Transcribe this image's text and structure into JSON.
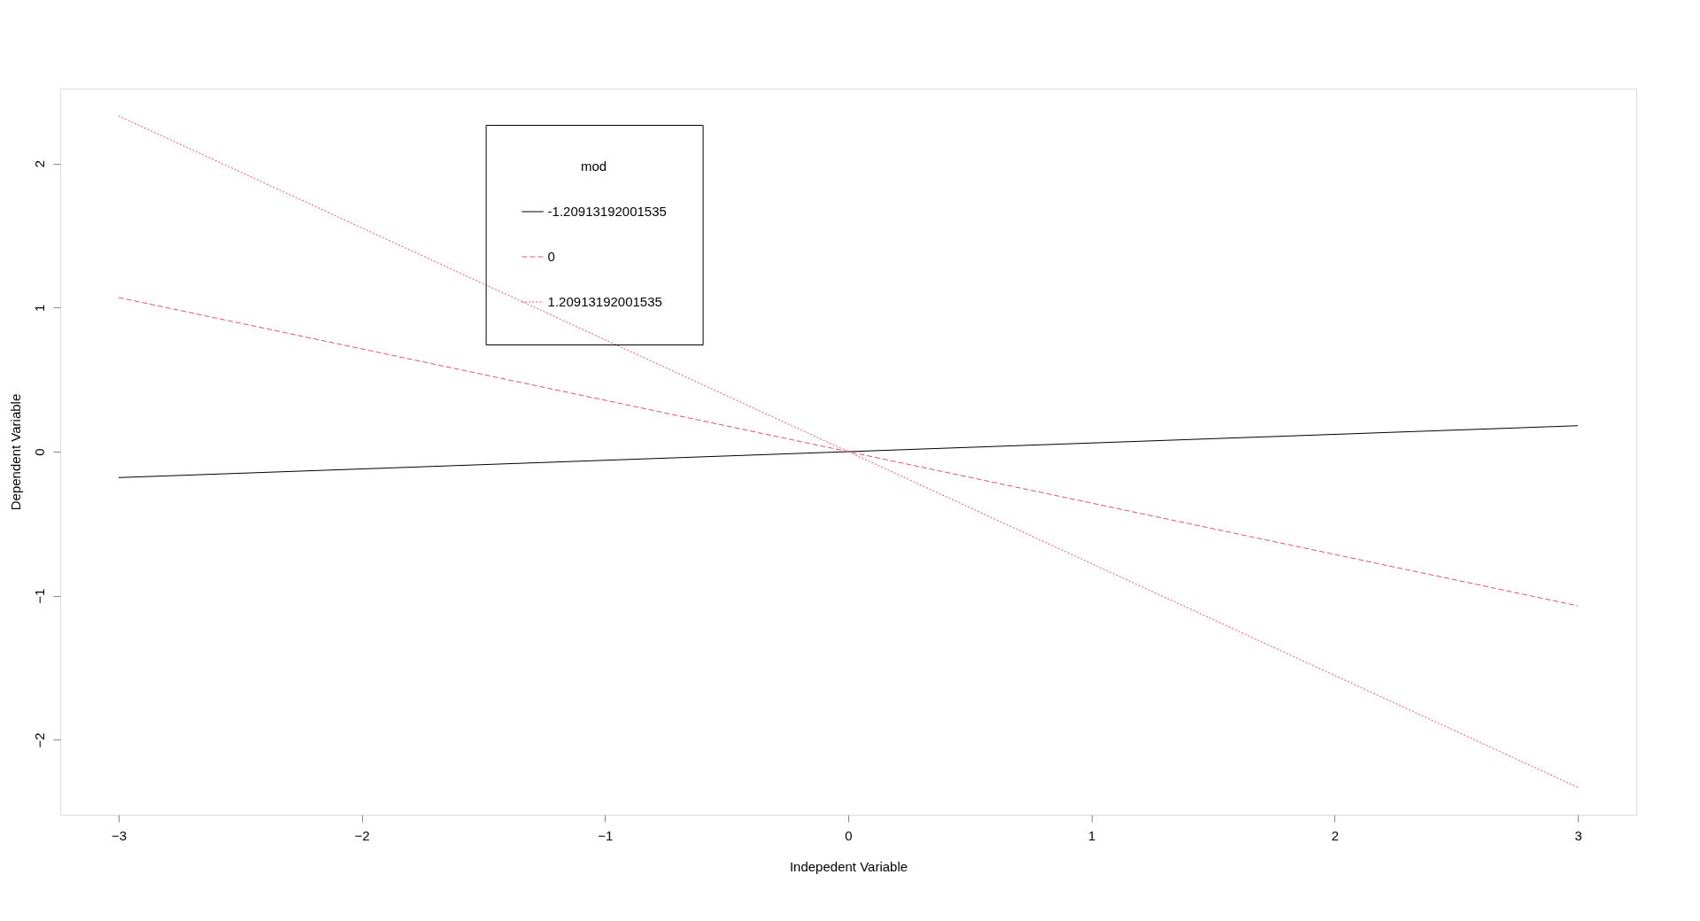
{
  "chart_data": {
    "type": "line",
    "xlabel": "Indepedent Variable",
    "ylabel": "Dependent Variable",
    "legend_title": "mod",
    "x": [
      -3,
      3
    ],
    "series": [
      {
        "name": "-1.20913192001535",
        "color": "#000000",
        "line_style": "solid",
        "values": [
          -0.18,
          0.18
        ]
      },
      {
        "name": "0",
        "color": "#df536b",
        "line_style": "dashed",
        "values": [
          1.07,
          -1.07
        ]
      },
      {
        "name": "1.20913192001535",
        "color": "#df536b",
        "line_style": "dotted",
        "values": [
          2.33,
          -2.33
        ]
      }
    ],
    "xlim": [
      -3.24,
      3.24
    ],
    "ylim": [
      -2.52,
      2.52
    ],
    "xticks": [
      -3,
      -2,
      -1,
      0,
      1,
      2,
      3
    ],
    "yticks": [
      -2,
      -1,
      0,
      1,
      2
    ],
    "grid": false,
    "legend": "top",
    "marker": "none"
  }
}
